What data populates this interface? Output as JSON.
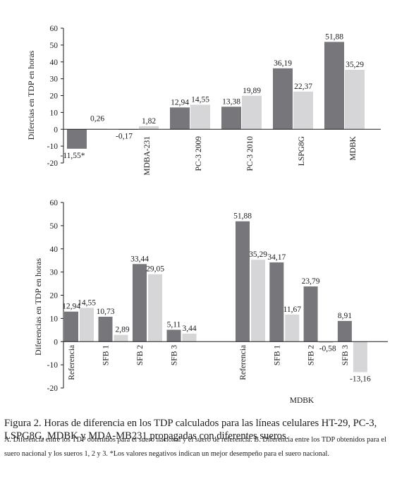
{
  "chart_data": [
    {
      "type": "bar",
      "ylabel": "Difercias en TDP en horas",
      "ylim": [
        -20,
        60
      ],
      "yticks": [
        -20,
        -10,
        0,
        10,
        20,
        30,
        40,
        50,
        60
      ],
      "grid": false,
      "categories": [
        "",
        "MDBA-231",
        "PC-3 2009",
        "PC-3 2010",
        "LSPG8G",
        "MDBK"
      ],
      "series": [
        {
          "values": [
            -11.55,
            -0.17,
            12.94,
            13.38,
            36.19,
            51.88
          ],
          "color": "#77777b"
        },
        {
          "values": [
            0.26,
            1.82,
            14.55,
            19.89,
            22.37,
            35.29
          ],
          "color": "#d6d6d9"
        }
      ],
      "data_labels": [
        [
          "-11,55*",
          "-0,17",
          "12,94",
          "13,38",
          "36,19",
          "51,88"
        ],
        [
          "0,26",
          "1,82",
          "14,55",
          "19,89",
          "22,37",
          "35,29"
        ]
      ]
    },
    {
      "type": "bar",
      "ylabel": "Diferencias en TDP en horas",
      "xlabel": "MDBK",
      "ylim": [
        -20,
        60
      ],
      "yticks": [
        -20,
        -10,
        0,
        10,
        20,
        30,
        40,
        50,
        60
      ],
      "grid": false,
      "categories": [
        "Referencia",
        "SFB 1",
        "SFB 2",
        "SFB 3",
        "Referencia",
        "SFB 1",
        "SFB 2",
        "SFB 3"
      ],
      "series": [
        {
          "values": [
            12.94,
            10.73,
            33.44,
            5.11,
            51.88,
            34.17,
            23.79,
            8.91
          ],
          "color": "#77777b"
        },
        {
          "values": [
            14.55,
            2.89,
            29.05,
            3.44,
            35.29,
            11.67,
            -0.58,
            -13.16
          ],
          "color": "#d6d6d9"
        }
      ],
      "data_labels": [
        [
          "12,94",
          "10,73",
          "33,44",
          "5,11",
          "51,88",
          "34,17",
          "23,79",
          "8,91"
        ],
        [
          "14,55",
          "2,89",
          "29,05",
          "3,44",
          "35,29",
          "11,67",
          "-0,58",
          "-13,16"
        ]
      ]
    }
  ],
  "caption": {
    "main": "Figura 2. Horas de diferencia en los TDP calculados para las líneas celulares HT-29, PC-3, LSPG8G, MDBK y MDA-MB231 propagadas con diferentes sueros.",
    "sub": "A. Diferencia entre los TDP obtenidos para el suero nacional y el suero de referencia. B. Diferencia entre los TDP obtenidos para el suero nacional y los sueros 1, 2 y 3. *Los valores negativos indican un mejor desempeño para el suero nacional."
  }
}
